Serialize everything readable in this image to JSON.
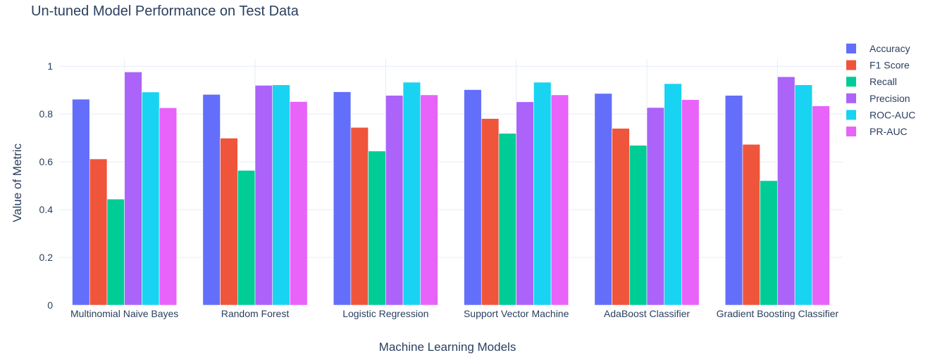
{
  "chart_data": {
    "type": "bar",
    "title": "Un-tuned Model Performance on Test Data",
    "xlabel": "Machine Learning Models",
    "ylabel": "Value of Metric",
    "categories": [
      "Multinomial Naive Bayes",
      "Random Forest",
      "Logistic Regression",
      "Support Vector Machine",
      "AdaBoost Classifier",
      "Gradient Boosting Classifier"
    ],
    "series": [
      {
        "name": "Accuracy",
        "color": "#636efa",
        "values": [
          0.862,
          0.882,
          0.893,
          0.902,
          0.886,
          0.878
        ]
      },
      {
        "name": "F1 Score",
        "color": "#ef553b",
        "values": [
          0.612,
          0.699,
          0.744,
          0.781,
          0.74,
          0.673
        ]
      },
      {
        "name": "Recall",
        "color": "#00cc96",
        "values": [
          0.444,
          0.564,
          0.645,
          0.719,
          0.669,
          0.521
        ]
      },
      {
        "name": "Precision",
        "color": "#ab63fa",
        "values": [
          0.976,
          0.92,
          0.878,
          0.851,
          0.827,
          0.956
        ]
      },
      {
        "name": "ROC-AUC",
        "color": "#19d3f3",
        "values": [
          0.892,
          0.922,
          0.933,
          0.933,
          0.927,
          0.922
        ]
      },
      {
        "name": "PR-AUC",
        "color": "#e763fa",
        "values": [
          0.826,
          0.852,
          0.88,
          0.88,
          0.86,
          0.834
        ]
      }
    ],
    "yticks": [
      "0",
      "0.2",
      "0.4",
      "0.6",
      "0.8",
      "1"
    ],
    "ylim": [
      0,
      1.03
    ],
    "grid": true,
    "legend_position": "right"
  }
}
